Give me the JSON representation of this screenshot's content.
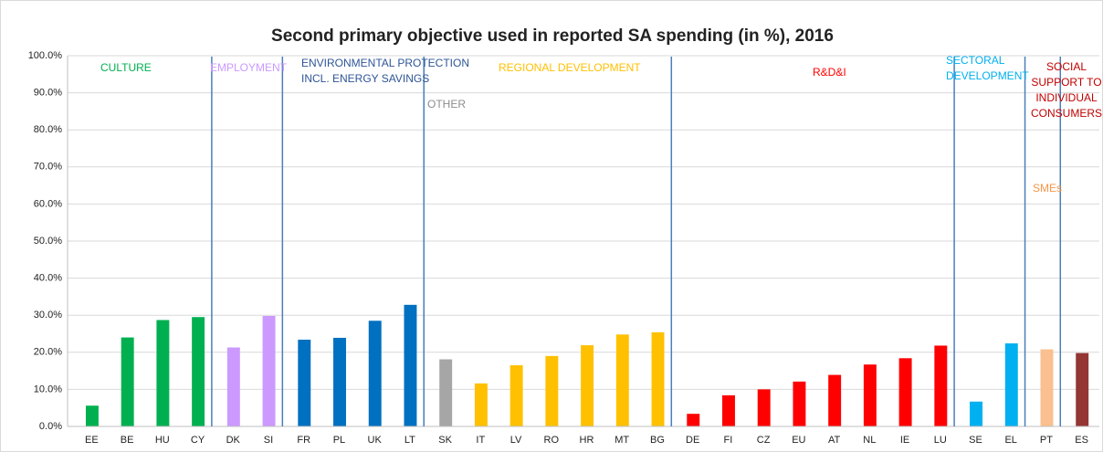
{
  "chart_data": {
    "type": "bar",
    "title": "Second primary objective used in reported  SA spending (in %), 2016",
    "categories": [
      "EE",
      "BE",
      "HU",
      "CY",
      "DK",
      "SI",
      "FR",
      "PL",
      "UK",
      "LT",
      "SK",
      "IT",
      "LV",
      "RO",
      "HR",
      "MT",
      "BG",
      "DE",
      "FI",
      "CZ",
      "EU",
      "AT",
      "NL",
      "IE",
      "LU",
      "SE",
      "EL",
      "PT",
      "ES"
    ],
    "values": [
      5.6,
      24.0,
      28.7,
      29.5,
      21.3,
      29.8,
      23.4,
      23.9,
      28.5,
      32.8,
      18.1,
      11.6,
      16.5,
      19.0,
      21.9,
      24.8,
      25.4,
      3.4,
      8.4,
      10.0,
      12.1,
      13.9,
      16.7,
      18.4,
      21.8,
      6.7,
      22.4,
      20.8,
      19.8
    ],
    "colors": [
      "#00b050",
      "#00b050",
      "#00b050",
      "#00b050",
      "#cc99ff",
      "#cc99ff",
      "#0070c0",
      "#0070c0",
      "#0070c0",
      "#0070c0",
      "#a6a6a6",
      "#ffc000",
      "#ffc000",
      "#ffc000",
      "#ffc000",
      "#ffc000",
      "#ffc000",
      "#ff0000",
      "#ff0000",
      "#ff0000",
      "#ff0000",
      "#ff0000",
      "#ff0000",
      "#ff0000",
      "#ff0000",
      "#00b0f0",
      "#00b0f0",
      "#fac090",
      "#943634"
    ],
    "ylim": [
      0,
      100
    ],
    "yticks": [
      {
        "value": 0,
        "label": "0.0%"
      },
      {
        "value": 10,
        "label": "10.0%"
      },
      {
        "value": 20,
        "label": "20.0%"
      },
      {
        "value": 30,
        "label": "30.0%"
      },
      {
        "value": 40,
        "label": "40.0%"
      },
      {
        "value": 50,
        "label": "50.0%"
      },
      {
        "value": 60,
        "label": "60.0%"
      },
      {
        "value": 70,
        "label": "70.0%"
      },
      {
        "value": 80,
        "label": "80.0%"
      },
      {
        "value": 90,
        "label": "90.0%"
      },
      {
        "value": 100,
        "label": "100.0%"
      }
    ],
    "grid": true,
    "annotations": [
      {
        "lines": [
          "CULTURE"
        ],
        "color": "#00b050"
      },
      {
        "lines": [
          "EMPLOYMENT"
        ],
        "color": "#cc99ff"
      },
      {
        "lines": [
          "ENVIRONMENTAL PROTECTION",
          "INCL. ENERGY SAVINGS"
        ],
        "color": "#2e5597"
      },
      {
        "lines": [
          "OTHER"
        ],
        "color": "#8c8c8c"
      },
      {
        "lines": [
          "REGIONAL DEVELOPMENT"
        ],
        "color": "#ffc000"
      },
      {
        "lines": [
          "R&D&I"
        ],
        "color": "#ff0000"
      },
      {
        "lines": [
          "SECTORAL",
          "DEVELOPMENT"
        ],
        "color": "#00b0f0"
      },
      {
        "lines": [
          "SMEs"
        ],
        "color": "#f79646"
      },
      {
        "lines": [
          "SOCIAL",
          "SUPPORT TO",
          "INDIVIDUAL",
          "CONSUMERS"
        ],
        "color": "#c00000"
      }
    ]
  }
}
